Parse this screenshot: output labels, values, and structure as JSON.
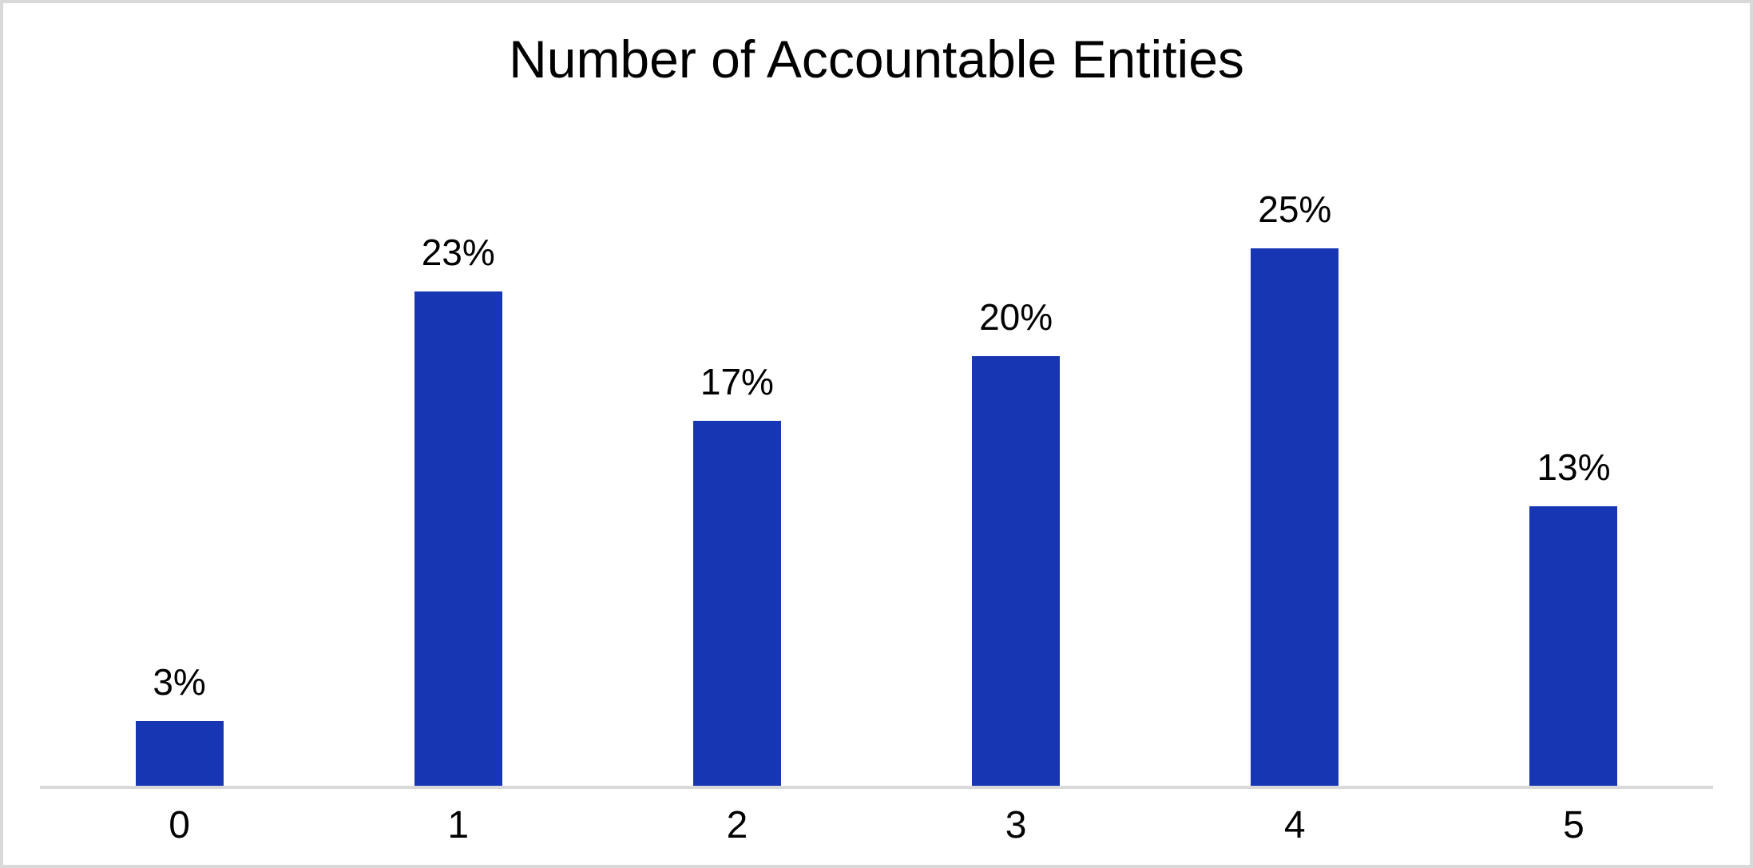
{
  "chart_data": {
    "type": "bar",
    "title": "Number of Accountable Entities",
    "categories": [
      "0",
      "1",
      "2",
      "3",
      "4",
      "5"
    ],
    "values": [
      3,
      23,
      17,
      20,
      25,
      13
    ],
    "labels": [
      "3%",
      "23%",
      "17%",
      "20%",
      "25%",
      "13%"
    ],
    "unit": "%",
    "xlabel": "",
    "ylabel": "",
    "y_axis_visible": false,
    "gridlines": false,
    "legend": false,
    "data_labels": true,
    "bar_color": "#1636B3",
    "axis_line_color": "#D9D9D9",
    "text_color": "#000000",
    "background_color": "#FFFFFF",
    "border_color": "#D9D9D9"
  }
}
